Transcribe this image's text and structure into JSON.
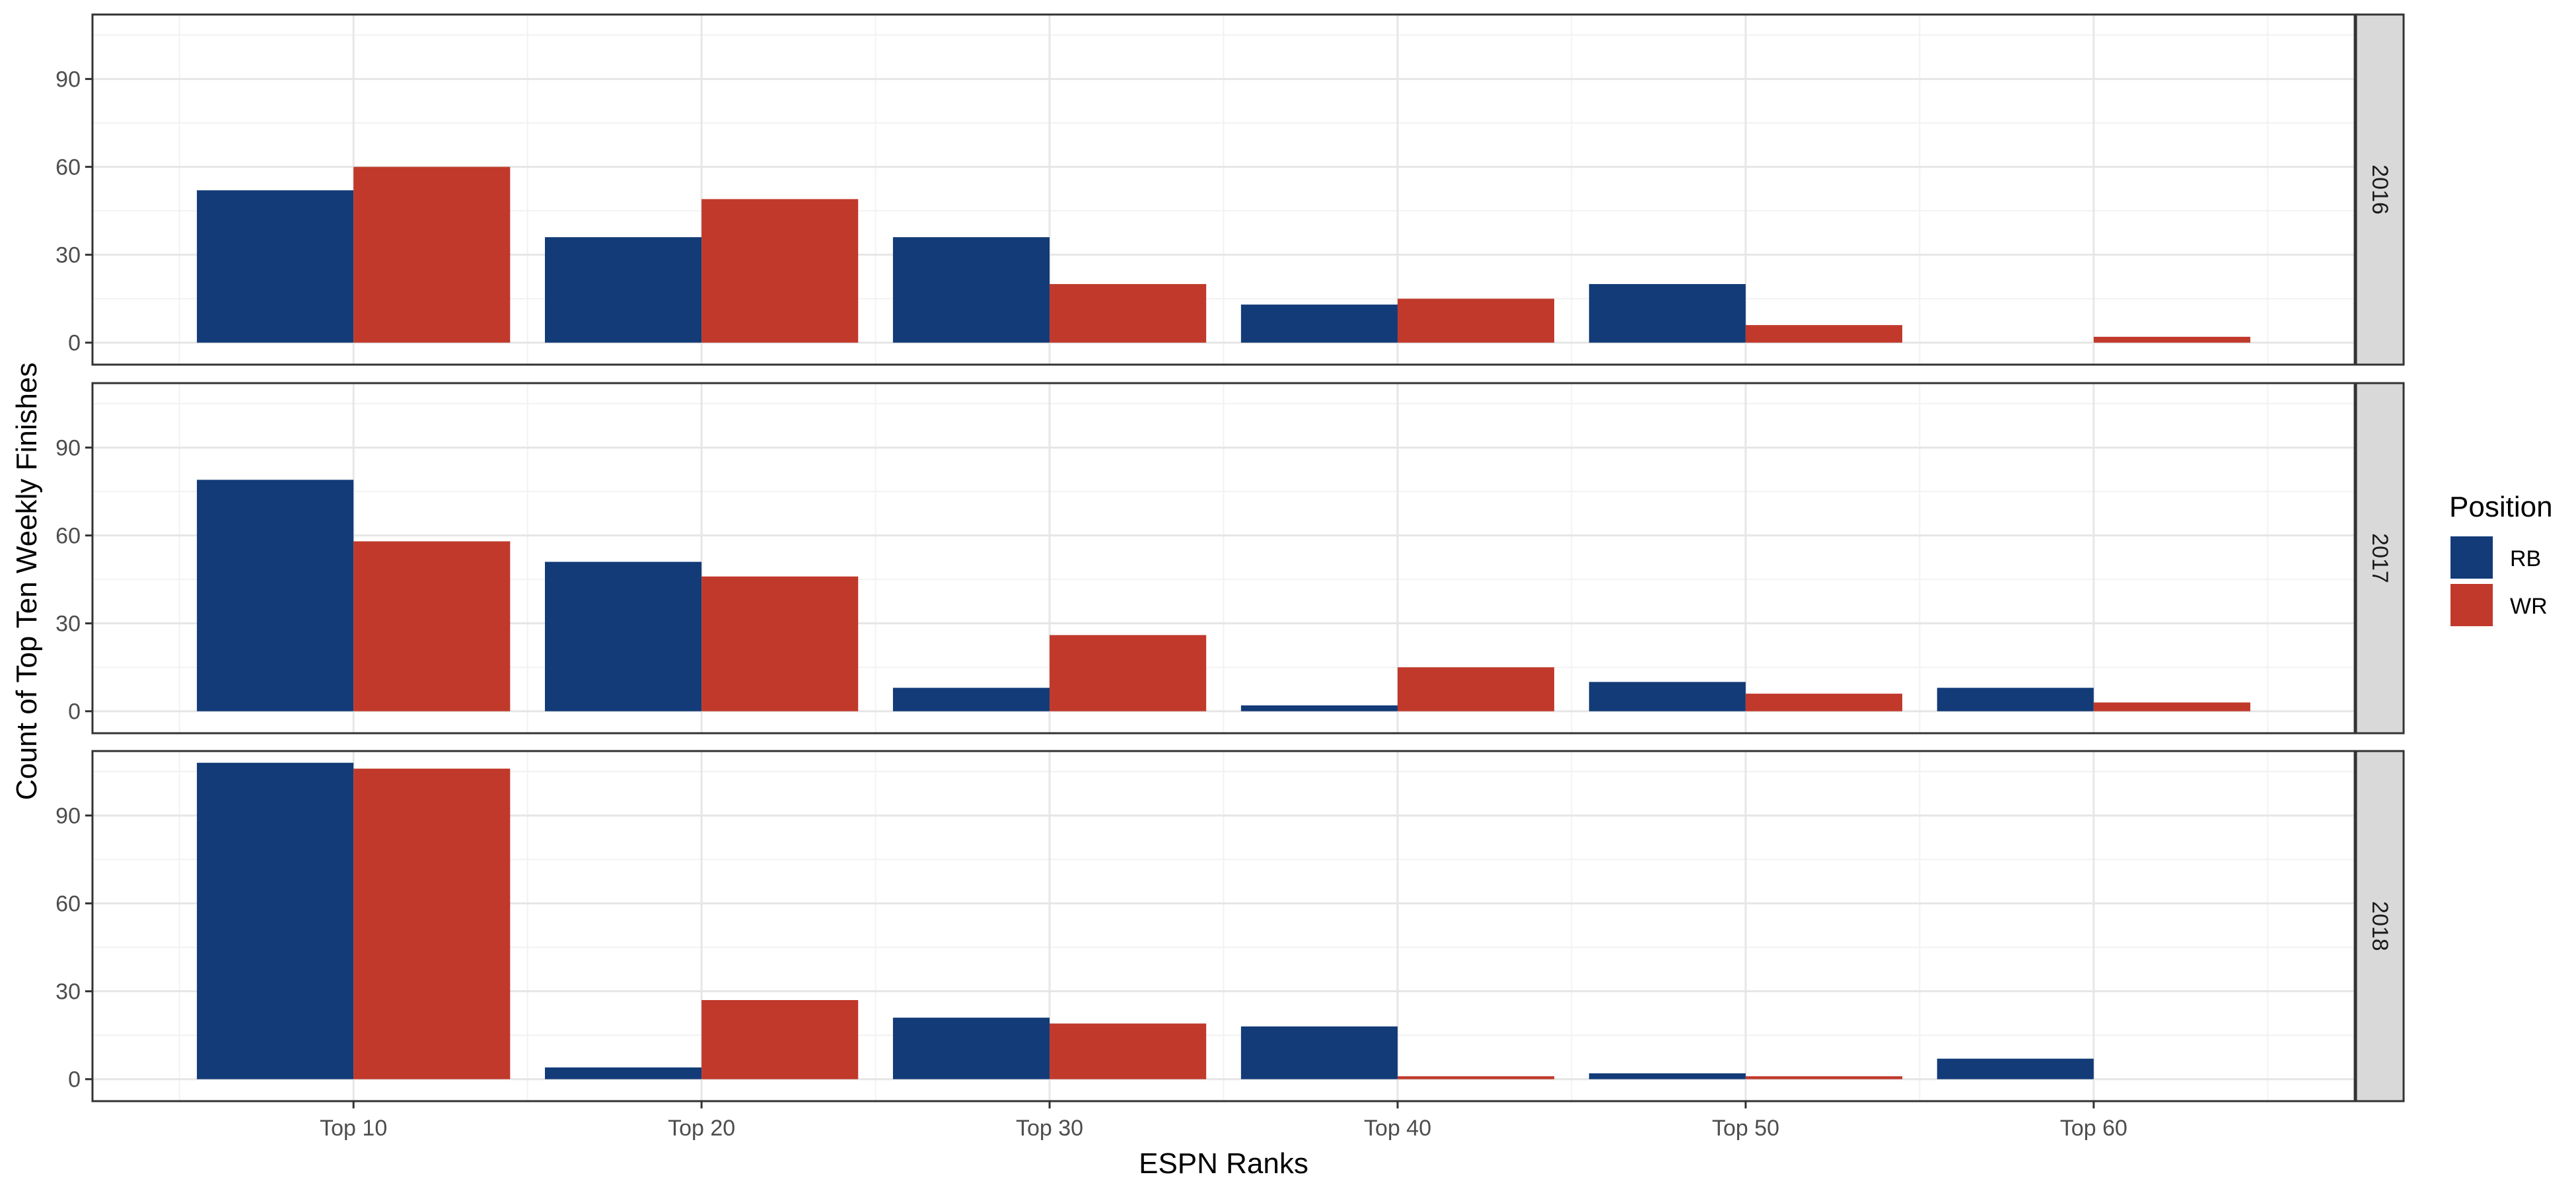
{
  "chart_data": {
    "type": "bar",
    "xlabel": "ESPN Ranks",
    "ylabel": "Count of Top Ten Weekly Finishes",
    "categories": [
      "Top 10",
      "Top 20",
      "Top 30",
      "Top 40",
      "Top 50",
      "Top 60"
    ],
    "y_ticks": [
      0,
      30,
      60,
      90
    ],
    "ylim": [
      0,
      112
    ],
    "grid": true,
    "legend": {
      "title": "Position",
      "position": "right",
      "entries": [
        {
          "name": "RB",
          "color": "#123b78"
        },
        {
          "name": "WR",
          "color": "#c0392b"
        }
      ]
    },
    "facets": [
      {
        "label": "2016",
        "series": [
          {
            "name": "RB",
            "values": [
              52,
              36,
              36,
              13,
              20,
              0
            ]
          },
          {
            "name": "WR",
            "values": [
              60,
              49,
              20,
              15,
              6,
              2
            ]
          }
        ]
      },
      {
        "label": "2017",
        "series": [
          {
            "name": "RB",
            "values": [
              79,
              51,
              8,
              2,
              10,
              8
            ]
          },
          {
            "name": "WR",
            "values": [
              58,
              46,
              26,
              15,
              6,
              3
            ]
          }
        ]
      },
      {
        "label": "2018",
        "series": [
          {
            "name": "RB",
            "values": [
              108,
              4,
              21,
              18,
              2,
              7
            ]
          },
          {
            "name": "WR",
            "values": [
              106,
              27,
              19,
              1,
              1,
              0
            ]
          }
        ]
      }
    ]
  }
}
